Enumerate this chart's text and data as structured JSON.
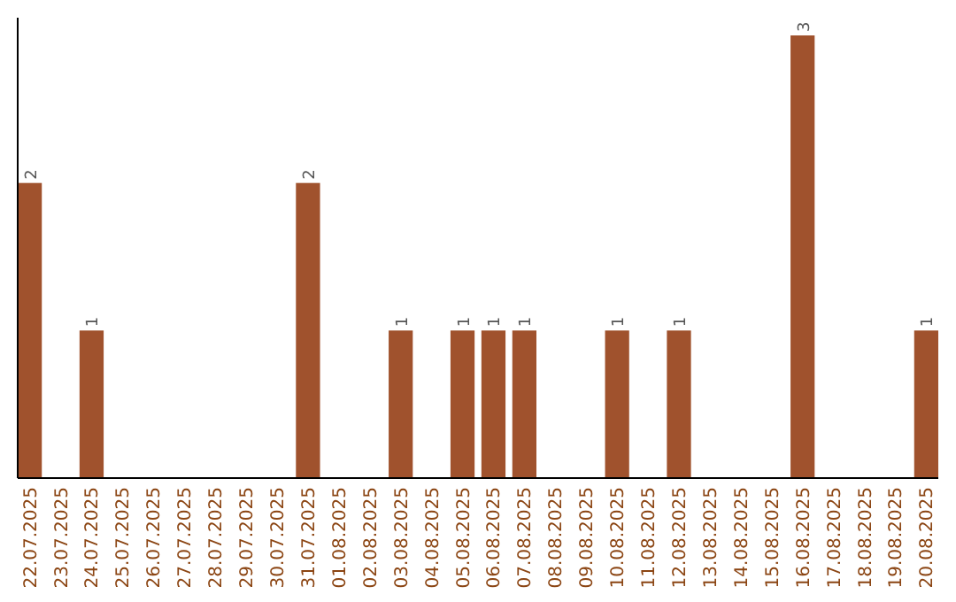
{
  "chart_data": {
    "type": "bar",
    "categories": [
      "22.07.2025",
      "23.07.2025",
      "24.07.2025",
      "25.07.2025",
      "26.07.2025",
      "27.07.2025",
      "28.07.2025",
      "29.07.2025",
      "30.07.2025",
      "31.07.2025",
      "01.08.2025",
      "02.08.2025",
      "03.08.2025",
      "04.08.2025",
      "05.08.2025",
      "06.08.2025",
      "07.08.2025",
      "08.08.2025",
      "09.08.2025",
      "10.08.2025",
      "11.08.2025",
      "12.08.2025",
      "13.08.2025",
      "14.08.2025",
      "15.08.2025",
      "16.08.2025",
      "17.08.2025",
      "18.08.2025",
      "19.08.2025",
      "20.08.2025"
    ],
    "values": [
      2,
      0,
      1,
      0,
      0,
      0,
      0,
      0,
      0,
      2,
      0,
      0,
      1,
      0,
      1,
      1,
      1,
      0,
      0,
      1,
      0,
      1,
      0,
      0,
      0,
      3,
      0,
      0,
      0,
      1
    ],
    "value_labels": [
      "2",
      null,
      "1",
      null,
      null,
      null,
      null,
      null,
      null,
      "2",
      null,
      null,
      "1",
      null,
      "1",
      "1",
      "1",
      null,
      null,
      "1",
      null,
      "1",
      null,
      null,
      null,
      "3",
      null,
      null,
      null,
      "1"
    ],
    "color": "#a0522d",
    "tick_labels": "x",
    "grid": false
  }
}
